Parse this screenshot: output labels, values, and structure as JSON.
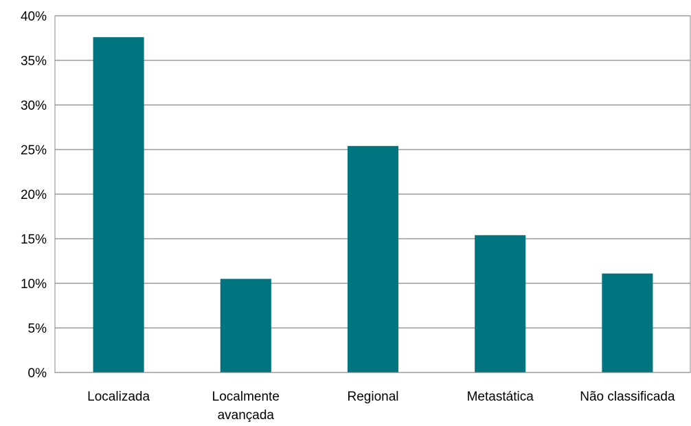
{
  "chart_data": {
    "type": "bar",
    "title": "",
    "xlabel": "",
    "ylabel": "",
    "categories": [
      [
        "Localizada"
      ],
      [
        "Localmente",
        "avançada"
      ],
      [
        "Regional"
      ],
      [
        "Metastática"
      ],
      [
        "Não classificada"
      ]
    ],
    "values": [
      37.6,
      10.5,
      25.4,
      15.4,
      11.1
    ],
    "ylim": [
      0,
      40
    ],
    "yticks": [
      "0%",
      "5%",
      "10%",
      "15%",
      "20%",
      "25%",
      "30%",
      "35%",
      "40%"
    ],
    "grid": true,
    "legend": "none",
    "colors": {
      "bar": "#007580",
      "grid": "#878787",
      "axis": "#878787",
      "border": "#878787"
    }
  }
}
